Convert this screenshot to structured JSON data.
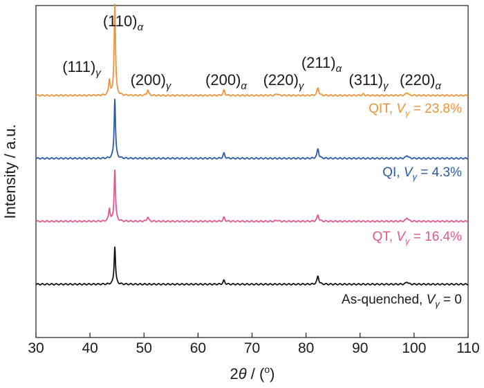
{
  "chart_data": {
    "type": "line",
    "xlabel_parts": {
      "symbol": "2",
      "var": "θ",
      "rest": " / (",
      "unit": "o",
      "close": ")"
    },
    "ylabel": "Intensity / a.u.",
    "xlim": [
      30,
      110
    ],
    "xticks": [
      30,
      40,
      50,
      60,
      70,
      80,
      90,
      100,
      110
    ],
    "grid": false,
    "baseline_noise": 0.02,
    "peaks": [
      {
        "id": "g111",
        "pos": 43.6,
        "width": 0.32,
        "miller": "(111)",
        "phase": "γ"
      },
      {
        "id": "a110",
        "pos": 44.6,
        "width": 0.3,
        "miller": "(110)",
        "phase": "α"
      },
      {
        "id": "g200",
        "pos": 50.7,
        "width": 0.35,
        "miller": "(200)",
        "phase": "γ"
      },
      {
        "id": "a200",
        "pos": 64.8,
        "width": 0.38,
        "miller": "(200)",
        "phase": "α"
      },
      {
        "id": "g220",
        "pos": 74.6,
        "width": 0.4,
        "miller": "(220)",
        "phase": "γ"
      },
      {
        "id": "a211",
        "pos": 82.2,
        "width": 0.4,
        "miller": "(211)",
        "phase": "α"
      },
      {
        "id": "g311",
        "pos": 90.6,
        "width": 0.45,
        "miller": "(311)",
        "phase": "γ"
      },
      {
        "id": "a220",
        "pos": 98.7,
        "width": 0.45,
        "miller": "(220)",
        "phase": "α"
      }
    ],
    "series": [
      {
        "key": "qit",
        "label_prefix": "QIT, ",
        "label_var": "V",
        "label_sub": "γ",
        "label_suffix": " = 23.8%",
        "color": "#f0923a",
        "offset": 3.0,
        "intensities": {
          "g111": 0.24,
          "a110": 1.45,
          "g200": 0.09,
          "a200": 0.08,
          "g220": 0.03,
          "a211": 0.12,
          "g311": 0.02,
          "a220": 0.05
        }
      },
      {
        "key": "qi",
        "label_prefix": "QI, ",
        "label_var": "V",
        "label_sub": "γ",
        "label_suffix": " = 4.3%",
        "color": "#2a5aa6",
        "offset": 2.0,
        "intensities": {
          "g111": 0.0,
          "a110": 0.95,
          "g200": 0.0,
          "a200": 0.08,
          "g220": 0.0,
          "a211": 0.15,
          "g311": 0.0,
          "a220": 0.05
        }
      },
      {
        "key": "qt",
        "label_prefix": "QT, ",
        "label_var": "V",
        "label_sub": "γ",
        "label_suffix": " = 16.4%",
        "color": "#e0578f",
        "offset": 1.0,
        "intensities": {
          "g111": 0.2,
          "a110": 0.82,
          "g200": 0.07,
          "a200": 0.06,
          "g220": 0.02,
          "a211": 0.1,
          "g311": 0.0,
          "a220": 0.06
        }
      },
      {
        "key": "asq",
        "label_prefix": "As-quenched, ",
        "label_var": "V",
        "label_sub": "γ",
        "label_suffix": " = 0",
        "color": "#111111",
        "offset": 0.0,
        "intensities": {
          "g111": 0.0,
          "a110": 0.6,
          "g200": 0.0,
          "a200": 0.06,
          "g220": 0.0,
          "a211": 0.13,
          "g311": 0.0,
          "a220": 0.04
        }
      }
    ]
  }
}
